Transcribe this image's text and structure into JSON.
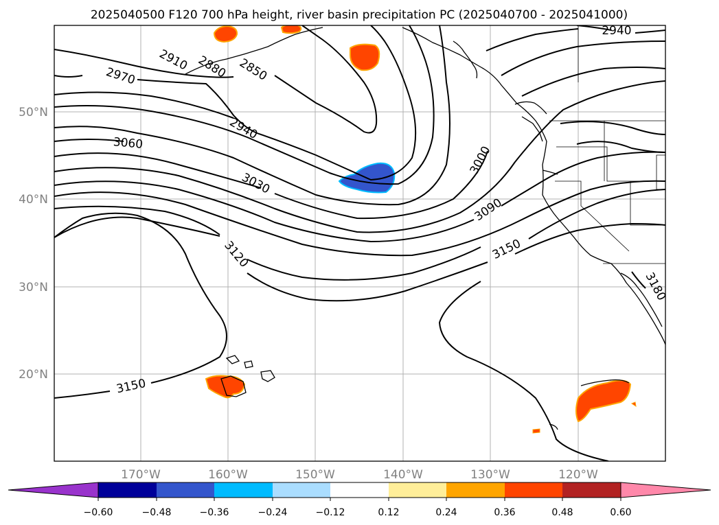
{
  "title": "2025040500 F120 700 hPa height, river basin precipitation PC (2025040700 - 2025041000)",
  "lon_ticks": [
    "170°W",
    "160°W",
    "150°W",
    "140°W",
    "130°W",
    "120°W"
  ],
  "lat_ticks": [
    "50°N",
    "40°N",
    "30°N",
    "20°N"
  ],
  "contour_labels": [
    "2940",
    "2910",
    "2880",
    "2850",
    "2970",
    "2940",
    "3060",
    "3000",
    "3030",
    "3090",
    "3120",
    "3150",
    "3180",
    "3150"
  ],
  "colorbar": {
    "ticks": [
      "−0.60",
      "−0.48",
      "−0.36",
      "−0.24",
      "−0.12",
      "0.12",
      "0.24",
      "0.36",
      "0.48",
      "0.60"
    ],
    "colors": [
      "#9933cc",
      "#000099",
      "#3355cc",
      "#00bbff",
      "#aaddff",
      "#ffffff",
      "#ffee99",
      "#ffa500",
      "#ff4500",
      "#b22222",
      "#ff88aa"
    ]
  },
  "precip_anomalies": [
    {
      "region": "Alaska Peninsula west",
      "sign": "positive",
      "color": "#ff4500"
    },
    {
      "region": "Alaska Peninsula east",
      "sign": "positive",
      "color": "#ff4500"
    },
    {
      "region": "Gulf of Alaska",
      "sign": "positive",
      "color": "#ff4500"
    },
    {
      "region": "NE Pacific 42N 143W",
      "sign": "negative",
      "color": "#3355cc"
    },
    {
      "region": "Hawaii",
      "sign": "positive",
      "color": "#ff4500"
    },
    {
      "region": "Mexico",
      "sign": "positive",
      "color": "#ff4500"
    }
  ]
}
